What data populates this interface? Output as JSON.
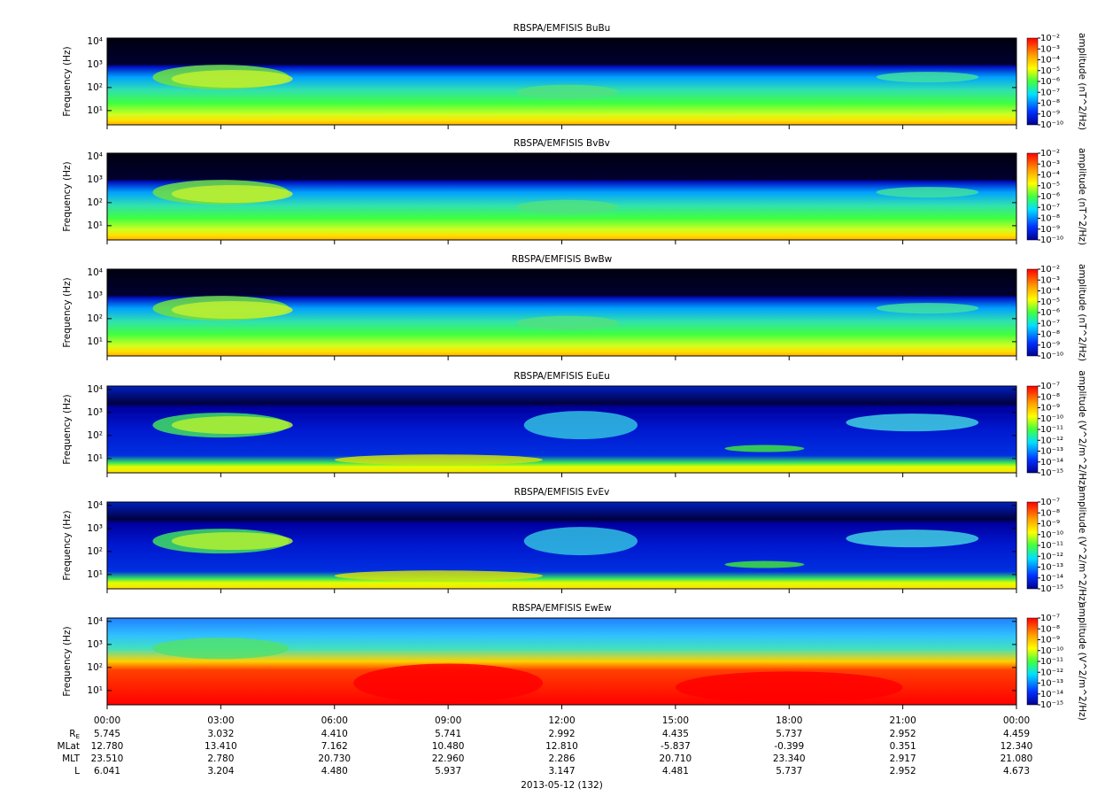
{
  "chart_data": [
    {
      "type": "spectrogram",
      "title": "RBSPA/EMFISIS  BuBu",
      "ylabel": "Frequency (Hz)",
      "log_y": true,
      "ylim": [
        2.4,
        14000
      ],
      "yticks": [
        {
          "value": 10,
          "label": "10¹"
        },
        {
          "value": 100,
          "label": "10²"
        },
        {
          "value": 1000,
          "label": "10³"
        },
        {
          "value": 10000,
          "label": "10⁴"
        }
      ],
      "zlabel": "amplitude (nT^2/Hz)",
      "zlim": [
        1e-10,
        0.01
      ],
      "zticks": [
        {
          "value": 0.01,
          "label": "10⁻²"
        },
        {
          "value": 0.001,
          "label": "10⁻³"
        },
        {
          "value": 0.0001,
          "label": "10⁻⁴"
        },
        {
          "value": 1e-05,
          "label": "10⁻⁵"
        },
        {
          "value": 1e-06,
          "label": "10⁻⁶"
        },
        {
          "value": 1e-07,
          "label": "10⁻⁷"
        },
        {
          "value": 1e-08,
          "label": "10⁻⁸"
        },
        {
          "value": 1e-09,
          "label": "10⁻⁹"
        },
        {
          "value": 1e-10,
          "label": "10⁻¹⁰"
        }
      ]
    },
    {
      "type": "spectrogram",
      "title": "RBSPA/EMFISIS  BvBv",
      "ylabel": "Frequency (Hz)",
      "log_y": true,
      "ylim": [
        2.4,
        14000
      ],
      "yticks": [
        {
          "value": 10,
          "label": "10¹"
        },
        {
          "value": 100,
          "label": "10²"
        },
        {
          "value": 1000,
          "label": "10³"
        },
        {
          "value": 10000,
          "label": "10⁴"
        }
      ],
      "zlabel": "amplitude (nT^2/Hz)",
      "zlim": [
        1e-10,
        0.01
      ],
      "zticks": [
        {
          "value": 0.01,
          "label": "10⁻²"
        },
        {
          "value": 0.001,
          "label": "10⁻³"
        },
        {
          "value": 0.0001,
          "label": "10⁻⁴"
        },
        {
          "value": 1e-05,
          "label": "10⁻⁵"
        },
        {
          "value": 1e-06,
          "label": "10⁻⁶"
        },
        {
          "value": 1e-07,
          "label": "10⁻⁷"
        },
        {
          "value": 1e-08,
          "label": "10⁻⁸"
        },
        {
          "value": 1e-09,
          "label": "10⁻⁹"
        },
        {
          "value": 1e-10,
          "label": "10⁻¹⁰"
        }
      ]
    },
    {
      "type": "spectrogram",
      "title": "RBSPA/EMFISIS  BwBw",
      "ylabel": "Frequency (Hz)",
      "log_y": true,
      "ylim": [
        2.4,
        14000
      ],
      "yticks": [
        {
          "value": 10,
          "label": "10¹"
        },
        {
          "value": 100,
          "label": "10²"
        },
        {
          "value": 1000,
          "label": "10³"
        },
        {
          "value": 10000,
          "label": "10⁴"
        }
      ],
      "zlabel": "amplitude (nT^2/Hz)",
      "zlim": [
        1e-10,
        0.01
      ],
      "zticks": [
        {
          "value": 0.01,
          "label": "10⁻²"
        },
        {
          "value": 0.001,
          "label": "10⁻³"
        },
        {
          "value": 0.0001,
          "label": "10⁻⁴"
        },
        {
          "value": 1e-05,
          "label": "10⁻⁵"
        },
        {
          "value": 1e-06,
          "label": "10⁻⁶"
        },
        {
          "value": 1e-07,
          "label": "10⁻⁷"
        },
        {
          "value": 1e-08,
          "label": "10⁻⁸"
        },
        {
          "value": 1e-09,
          "label": "10⁻⁹"
        },
        {
          "value": 1e-10,
          "label": "10⁻¹⁰"
        }
      ]
    },
    {
      "type": "spectrogram",
      "title": "RBSPA/EMFISIS  EuEu",
      "ylabel": "Frequency (Hz)",
      "log_y": true,
      "ylim": [
        2.4,
        14000
      ],
      "yticks": [
        {
          "value": 10,
          "label": "10¹"
        },
        {
          "value": 100,
          "label": "10²"
        },
        {
          "value": 1000,
          "label": "10³"
        },
        {
          "value": 10000,
          "label": "10⁴"
        }
      ],
      "zlabel": "amplitude (V^2/m^2/Hz)",
      "zlim": [
        1e-15,
        1e-07
      ],
      "zticks": [
        {
          "value": 1e-07,
          "label": "10⁻⁷"
        },
        {
          "value": 1e-08,
          "label": "10⁻⁸"
        },
        {
          "value": 1e-09,
          "label": "10⁻⁹"
        },
        {
          "value": 1e-10,
          "label": "10⁻¹⁰"
        },
        {
          "value": 1e-11,
          "label": "10⁻¹¹"
        },
        {
          "value": 1e-12,
          "label": "10⁻¹²"
        },
        {
          "value": 1e-13,
          "label": "10⁻¹³"
        },
        {
          "value": 1e-14,
          "label": "10⁻¹⁴"
        },
        {
          "value": 1e-15,
          "label": "10⁻¹⁵"
        }
      ]
    },
    {
      "type": "spectrogram",
      "title": "RBSPA/EMFISIS  EvEv",
      "ylabel": "Frequency (Hz)",
      "log_y": true,
      "ylim": [
        2.4,
        14000
      ],
      "yticks": [
        {
          "value": 10,
          "label": "10¹"
        },
        {
          "value": 100,
          "label": "10²"
        },
        {
          "value": 1000,
          "label": "10³"
        },
        {
          "value": 10000,
          "label": "10⁴"
        }
      ],
      "zlabel": "amplitude (V^2/m^2/Hz)",
      "zlim": [
        1e-15,
        1e-07
      ],
      "zticks": [
        {
          "value": 1e-07,
          "label": "10⁻⁷"
        },
        {
          "value": 1e-08,
          "label": "10⁻⁸"
        },
        {
          "value": 1e-09,
          "label": "10⁻⁹"
        },
        {
          "value": 1e-10,
          "label": "10⁻¹⁰"
        },
        {
          "value": 1e-11,
          "label": "10⁻¹¹"
        },
        {
          "value": 1e-12,
          "label": "10⁻¹²"
        },
        {
          "value": 1e-13,
          "label": "10⁻¹³"
        },
        {
          "value": 1e-14,
          "label": "10⁻¹⁴"
        },
        {
          "value": 1e-15,
          "label": "10⁻¹⁵"
        }
      ]
    },
    {
      "type": "spectrogram",
      "title": "RBSPA/EMFISIS  EwEw",
      "ylabel": "Frequency (Hz)",
      "log_y": true,
      "ylim": [
        2.4,
        14000
      ],
      "yticks": [
        {
          "value": 10,
          "label": "10¹"
        },
        {
          "value": 100,
          "label": "10²"
        },
        {
          "value": 1000,
          "label": "10³"
        },
        {
          "value": 10000,
          "label": "10⁴"
        }
      ],
      "zlabel": "amplitude (V^2/m^2/Hz)",
      "zlim": [
        1e-15,
        1e-07
      ],
      "zticks": [
        {
          "value": 1e-07,
          "label": "10⁻⁷"
        },
        {
          "value": 1e-08,
          "label": "10⁻⁸"
        },
        {
          "value": 1e-09,
          "label": "10⁻⁹"
        },
        {
          "value": 1e-10,
          "label": "10⁻¹⁰"
        },
        {
          "value": 1e-11,
          "label": "10⁻¹¹"
        },
        {
          "value": 1e-12,
          "label": "10⁻¹²"
        },
        {
          "value": 1e-13,
          "label": "10⁻¹³"
        },
        {
          "value": 1e-14,
          "label": "10⁻¹⁴"
        },
        {
          "value": 1e-15,
          "label": "10⁻¹⁵"
        }
      ],
      "xlabel": "2013-05-12 (132)",
      "xlim": [
        0,
        24
      ],
      "xticks": [
        {
          "value": 0,
          "label": "00:00"
        },
        {
          "value": 3,
          "label": "03:00"
        },
        {
          "value": 6,
          "label": "06:00"
        },
        {
          "value": 9,
          "label": "09:00"
        },
        {
          "value": 12,
          "label": "12:00"
        },
        {
          "value": 15,
          "label": "15:00"
        },
        {
          "value": 18,
          "label": "18:00"
        },
        {
          "value": 21,
          "label": "21:00"
        },
        {
          "value": 24,
          "label": "00:00"
        }
      ]
    }
  ],
  "ephemeris": [
    {
      "label": "R",
      "sub": "E",
      "values": [
        "5.745",
        "3.032",
        "4.410",
        "5.741",
        "2.992",
        "4.435",
        "5.737",
        "2.952",
        "4.459"
      ]
    },
    {
      "label": "MLat",
      "values": [
        "12.780",
        "13.410",
        "7.162",
        "10.480",
        "12.810",
        "-5.837",
        "-0.399",
        "0.351",
        "12.340"
      ]
    },
    {
      "label": "MLT",
      "values": [
        "23.510",
        "2.780",
        "20.730",
        "22.960",
        "2.286",
        "20.710",
        "23.340",
        "2.917",
        "21.080"
      ]
    },
    {
      "label": "L",
      "values": [
        "6.041",
        "3.204",
        "4.480",
        "5.937",
        "3.147",
        "4.481",
        "5.737",
        "2.952",
        "4.673"
      ]
    }
  ]
}
